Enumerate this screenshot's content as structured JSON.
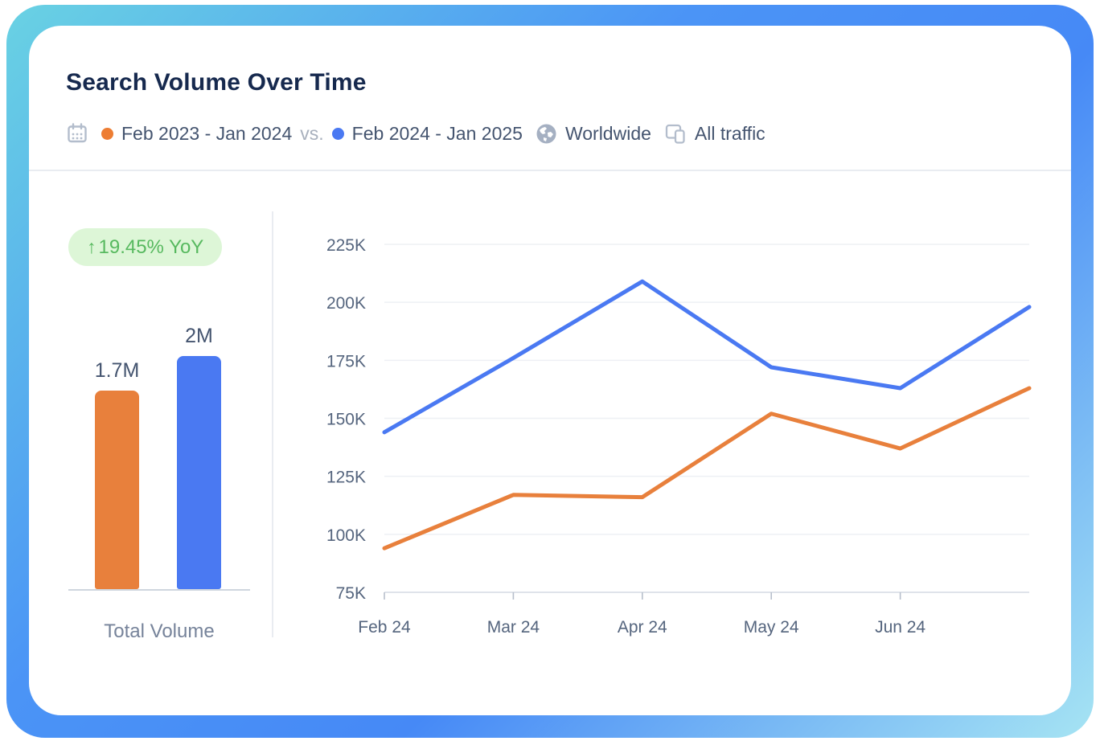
{
  "header": {
    "title": "Search Volume Over Time",
    "period_a": "Feb 2023 - Jan 2024",
    "vs_label": "vs.",
    "period_b": "Feb 2024 - Jan 2025",
    "region": "Worldwide",
    "traffic": "All traffic"
  },
  "summary": {
    "yoy_arrow": "↑",
    "yoy_label": "19.45% YoY",
    "total_volume_label": "Total Volume"
  },
  "colors": {
    "accent_blue": "#4a79f2",
    "accent_orange": "#e8803c",
    "badge_bg": "#ddf6d7",
    "badge_text": "#57b95f",
    "title_text": "#16294e",
    "axis_text": "#55657e",
    "grid_line": "#eef0f4"
  },
  "chart_data": [
    {
      "type": "bar",
      "title": "Total Volume",
      "categories": [
        "Feb 2023 - Jan 2024",
        "Feb 2024 - Jan 2025"
      ],
      "values": [
        1700000,
        2000000
      ],
      "value_labels": [
        "1.7M",
        "2M"
      ],
      "colors": [
        "#e8803c",
        "#4a79f2"
      ],
      "ylim": [
        0,
        2000000
      ]
    },
    {
      "type": "line",
      "x": [
        "Feb 24",
        "Mar 24",
        "Apr 24",
        "May 24",
        "Jun 24",
        ""
      ],
      "series": [
        {
          "name": "Feb 2024 - Jan 2025",
          "color": "#4a79f2",
          "values": [
            144000,
            176000,
            209000,
            172000,
            163000,
            198000
          ]
        },
        {
          "name": "Feb 2023 - Jan 2024",
          "color": "#e8803c",
          "values": [
            94000,
            117000,
            116000,
            152000,
            137000,
            163000
          ]
        }
      ],
      "ylim": [
        75000,
        225000
      ],
      "y_tick_values": [
        225000,
        200000,
        175000,
        150000,
        125000,
        100000,
        75000
      ],
      "y_tick_labels": [
        "225K",
        "200K",
        "175K",
        "150K",
        "125K",
        "100K",
        "75K"
      ],
      "grid": true,
      "legend_position": "header"
    }
  ]
}
